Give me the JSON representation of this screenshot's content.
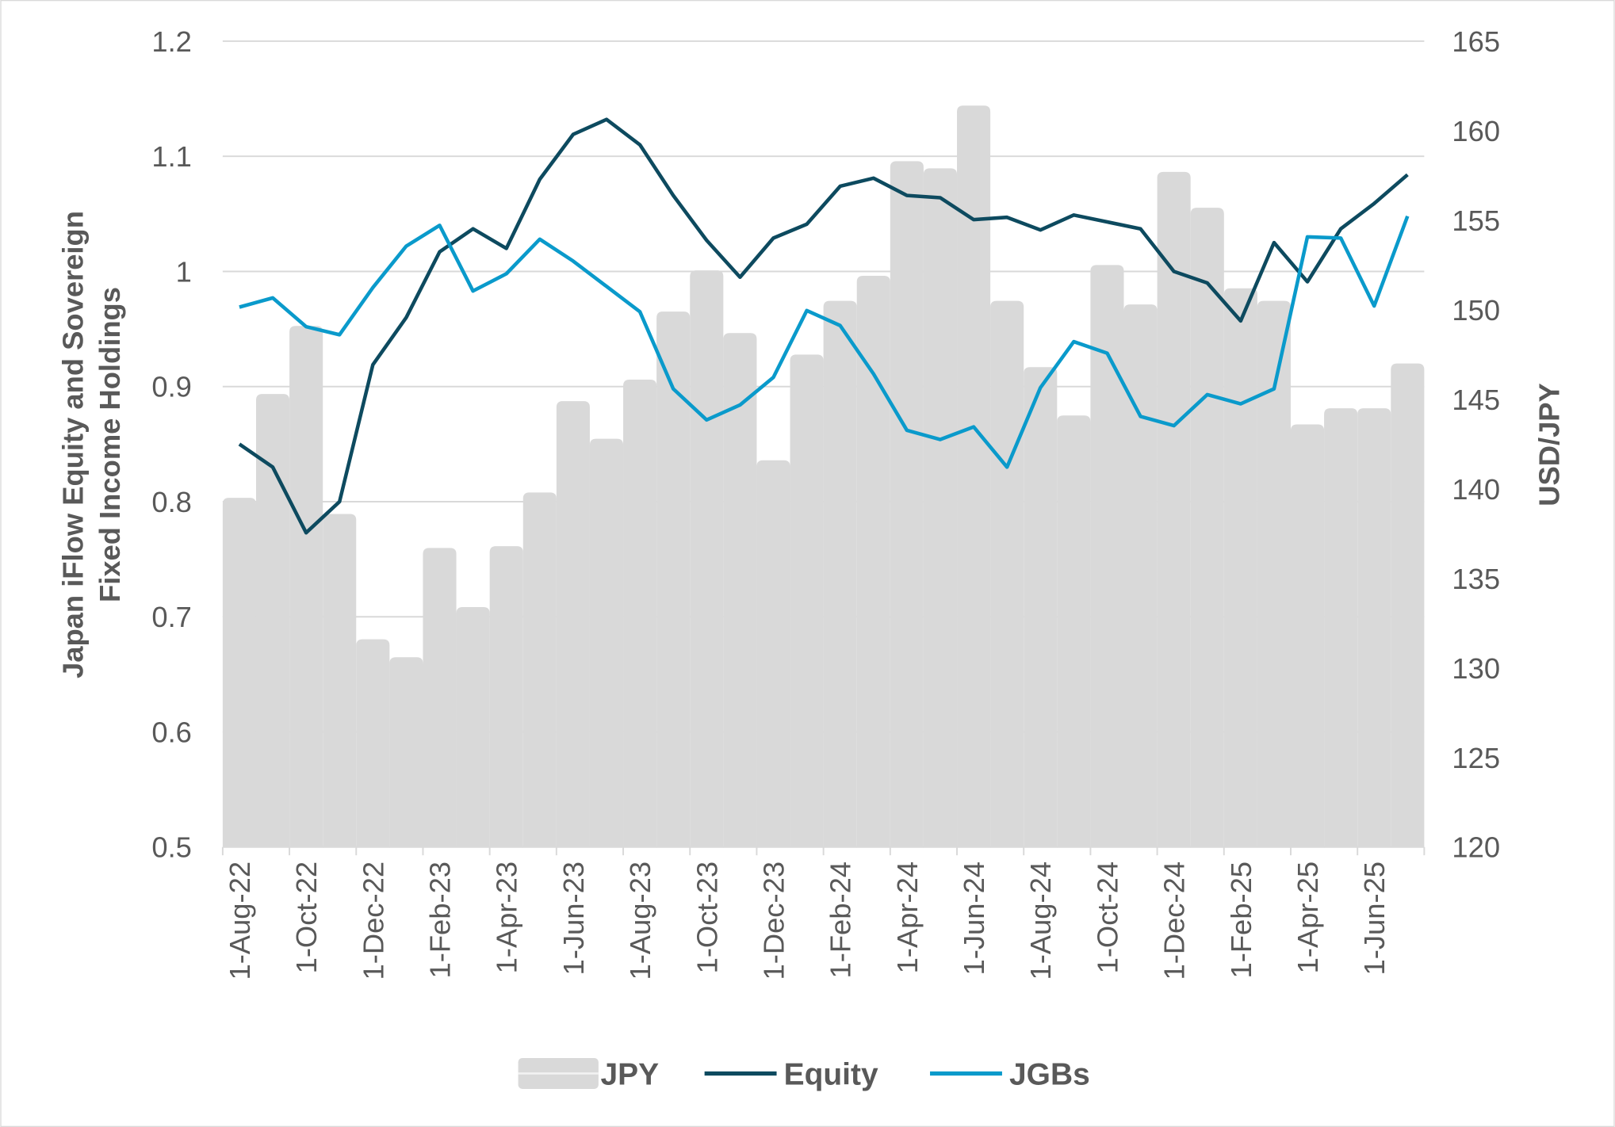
{
  "chart_data": {
    "type": "bar+line",
    "categories": [
      "Aug-22",
      "Sep-22",
      "Oct-22",
      "Nov-22",
      "Dec-22",
      "Jan-23",
      "Feb-23",
      "Mar-23",
      "Apr-23",
      "May-23",
      "Jun-23",
      "Jul-23",
      "Aug-23",
      "Sep-23",
      "Oct-23",
      "Nov-23",
      "Dec-23",
      "Jan-24",
      "Feb-24",
      "Mar-24",
      "Apr-24",
      "May-24",
      "Jun-24",
      "Jul-24",
      "Aug-24",
      "Sep-24",
      "Oct-24",
      "Nov-24",
      "Dec-24",
      "Jan-25",
      "Feb-25",
      "Mar-25",
      "Apr-25",
      "May-25",
      "Jun-25",
      "Jul-25"
    ],
    "x_tick_labels": [
      "1-Aug-22",
      "1-Oct-22",
      "1-Dec-22",
      "1-Feb-23",
      "1-Apr-23",
      "1-Jun-23",
      "1-Aug-23",
      "1-Oct-23",
      "1-Dec-23",
      "1-Feb-24",
      "1-Apr-24",
      "1-Jun-24",
      "1-Aug-24",
      "1-Oct-24",
      "1-Dec-24",
      "1-Feb-25",
      "1-Apr-25",
      "1-Jun-25"
    ],
    "ylabel": "Japan iFlow Equity and Sovereign Fixed Income Holdings",
    "ylabel_lines": [
      "Japan iFlow Equity and Sovereign",
      "Fixed Income Holdings"
    ],
    "y2label": "USD/JPY",
    "ylim": [
      0.5,
      1.2
    ],
    "y_ticks": [
      "0.5",
      "0.6",
      "0.7",
      "0.8",
      "0.9",
      "1",
      "1.1",
      "1.2"
    ],
    "y2lim": [
      120,
      165
    ],
    "y2_ticks": [
      "120",
      "125",
      "130",
      "135",
      "140",
      "145",
      "150",
      "155",
      "160",
      "165"
    ],
    "grid": true,
    "legend_position": "bottom",
    "series": [
      {
        "name": "JPY",
        "type": "bar",
        "axis": "right",
        "color": "#d9d9d9",
        "values": [
          139.5,
          145.3,
          149.1,
          138.6,
          131.6,
          130.6,
          136.7,
          133.4,
          136.8,
          139.8,
          144.9,
          142.8,
          146.1,
          149.9,
          152.2,
          148.7,
          141.6,
          147.5,
          150.5,
          151.9,
          158.3,
          157.9,
          161.4,
          150.5,
          146.8,
          144.1,
          152.5,
          150.3,
          157.7,
          155.7,
          151.2,
          150.5,
          143.6,
          144.5,
          144.5,
          147.0
        ]
      },
      {
        "name": "Equity",
        "type": "line",
        "axis": "left",
        "color": "#0d4a5f",
        "values": [
          0.85,
          0.83,
          0.773,
          0.8,
          0.919,
          0.96,
          1.017,
          1.037,
          1.02,
          1.08,
          1.119,
          1.132,
          1.11,
          1.066,
          1.027,
          0.995,
          1.029,
          1.041,
          1.074,
          1.081,
          1.066,
          1.064,
          1.045,
          1.047,
          1.036,
          1.049,
          1.043,
          1.037,
          1.0,
          0.99,
          0.957,
          1.025,
          0.991,
          1.037,
          1.059,
          1.084
        ]
      },
      {
        "name": "JGBs",
        "type": "line",
        "axis": "left",
        "color": "#0a9acb",
        "values": [
          0.969,
          0.977,
          0.952,
          0.945,
          0.986,
          1.022,
          1.04,
          0.983,
          0.998,
          1.028,
          1.009,
          0.987,
          0.965,
          0.898,
          0.871,
          0.884,
          0.908,
          0.966,
          0.953,
          0.911,
          0.862,
          0.854,
          0.865,
          0.83,
          0.899,
          0.939,
          0.929,
          0.874,
          0.866,
          0.893,
          0.885,
          0.898,
          1.03,
          1.029,
          0.97,
          1.048
        ]
      }
    ]
  }
}
